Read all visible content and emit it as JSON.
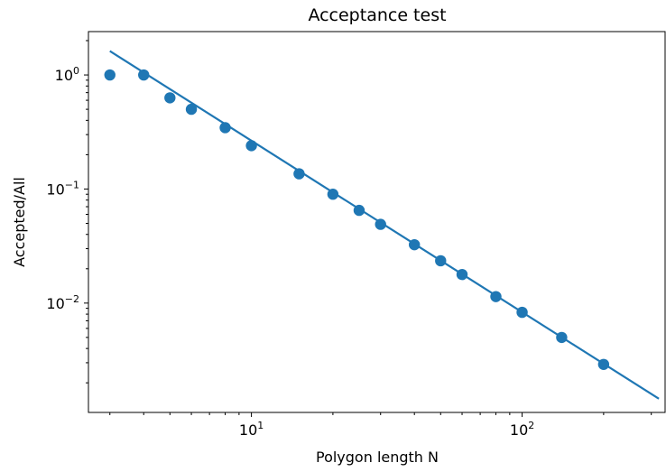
{
  "chart_data": {
    "type": "scatter",
    "title": "Acceptance test",
    "xlabel": "Polygon length N",
    "ylabel": "Accepted/All",
    "xscale": "log",
    "yscale": "log",
    "xlim": [
      2.5,
      340
    ],
    "ylim": [
      0.0011,
      2.4
    ],
    "x_ticks": [
      {
        "value": 10,
        "base": "10",
        "exp": "1"
      },
      {
        "value": 100,
        "base": "10",
        "exp": "2"
      }
    ],
    "y_ticks": [
      {
        "value": 1,
        "base": "10",
        "exp": "0"
      },
      {
        "value": 0.1,
        "base": "10",
        "exp": "−1"
      },
      {
        "value": 0.01,
        "base": "10",
        "exp": "−2"
      }
    ],
    "grid": false,
    "color": "#1f77b4",
    "series": [
      {
        "kind": "scatter",
        "x": [
          3,
          4,
          5,
          6,
          8,
          10,
          15,
          20,
          25,
          30,
          40,
          50,
          60,
          80,
          100,
          140,
          200
        ],
        "y": [
          1.0,
          1.0,
          0.63,
          0.5,
          0.345,
          0.24,
          0.136,
          0.09,
          0.065,
          0.049,
          0.0325,
          0.0235,
          0.0178,
          0.0114,
          0.0083,
          0.005,
          0.0029
        ]
      },
      {
        "kind": "line",
        "x": [
          3,
          320
        ],
        "y": [
          1.62,
          0.00145
        ]
      }
    ]
  }
}
